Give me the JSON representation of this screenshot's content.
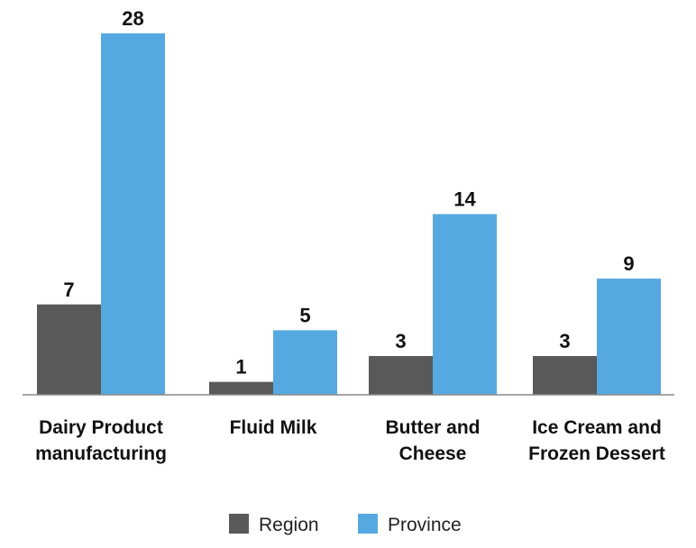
{
  "chart_data": {
    "type": "bar",
    "categories": [
      [
        "Dairy Product",
        "manufacturing"
      ],
      [
        "Fluid Milk"
      ],
      [
        "Butter and",
        "Cheese"
      ],
      [
        "Ice Cream and",
        "Frozen Dessert"
      ]
    ],
    "series": [
      {
        "name": "Region",
        "values": [
          7,
          1,
          3,
          3
        ],
        "color": "#595959"
      },
      {
        "name": "Province",
        "values": [
          28,
          5,
          14,
          9
        ],
        "color": "#56A9E0"
      }
    ],
    "ylim": [
      0,
      28
    ],
    "grid": false,
    "legend_position": "bottom-center"
  }
}
